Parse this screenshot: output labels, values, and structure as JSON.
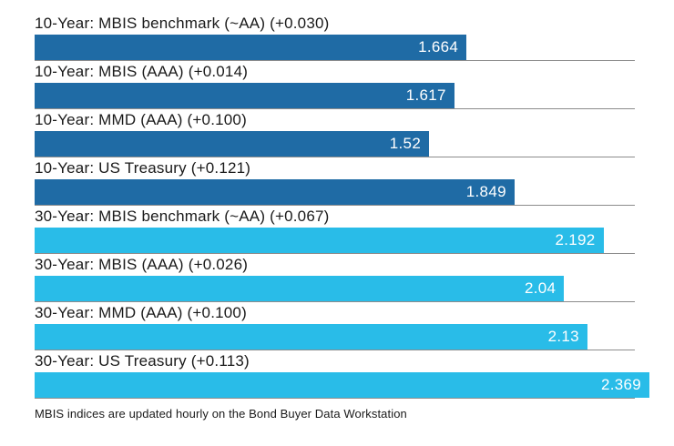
{
  "chart_data": {
    "type": "bar",
    "orientation": "horizontal",
    "xlim": [
      0,
      2.369
    ],
    "grid": false,
    "legend": "none",
    "bars": [
      {
        "label": "10-Year: MBIS benchmark (~AA) (+0.030)",
        "value": 1.664,
        "value_label": "1.664",
        "series": "10-year"
      },
      {
        "label": "10-Year: MBIS (AAA) (+0.014)",
        "value": 1.617,
        "value_label": "1.617",
        "series": "10-year"
      },
      {
        "label": "10-Year: MMD (AAA) (+0.100)",
        "value": 1.52,
        "value_label": "1.52",
        "series": "10-year"
      },
      {
        "label": "10-Year: US Treasury (+0.121)",
        "value": 1.849,
        "value_label": "1.849",
        "series": "10-year"
      },
      {
        "label": "30-Year: MBIS benchmark (~AA) (+0.067)",
        "value": 2.192,
        "value_label": "2.192",
        "series": "30-year"
      },
      {
        "label": "30-Year: MBIS (AAA) (+0.026)",
        "value": 2.04,
        "value_label": "2.04",
        "series": "30-year"
      },
      {
        "label": "30-Year: MMD (AAA) (+0.100)",
        "value": 2.13,
        "value_label": "2.13",
        "series": "30-year"
      },
      {
        "label": "30-Year: US Treasury (+0.113)",
        "value": 2.369,
        "value_label": "2.369",
        "series": "30-year"
      }
    ],
    "colors": {
      "series_10_year": "#1F6BA5",
      "series_30_year": "#29BCE8",
      "divider": "#8C8C8C",
      "label_text": "#1A1A1A",
      "bar_value_text": "#FFFFFF"
    }
  },
  "footer": {
    "note": "MBIS indices are updated hourly on the Bond Buyer Data Workstation"
  }
}
